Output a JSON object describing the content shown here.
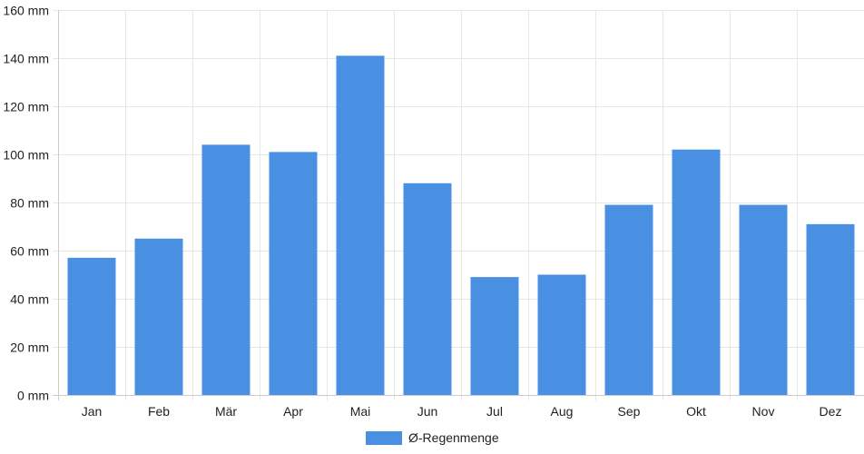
{
  "chart_data": {
    "type": "bar",
    "categories": [
      "Jan",
      "Feb",
      "Mär",
      "Apr",
      "Mai",
      "Jun",
      "Jul",
      "Aug",
      "Sep",
      "Okt",
      "Nov",
      "Dez"
    ],
    "series": [
      {
        "name": "Ø-Regenmenge",
        "values": [
          57,
          65,
          104,
          101,
          141,
          88,
          49,
          50,
          79,
          102,
          79,
          71
        ],
        "color": "#4a90e2"
      }
    ],
    "y_ticks": [
      "0 mm",
      "20 mm",
      "40 mm",
      "60 mm",
      "80 mm",
      "100 mm",
      "120 mm",
      "140 mm",
      "160 mm"
    ],
    "ylim": [
      0,
      160
    ],
    "y_step": 20,
    "grid": true,
    "legend_position": "bottom",
    "colors": {
      "grid": "#e6e6e6",
      "axis": "#cccccc",
      "text": "#222222"
    }
  }
}
